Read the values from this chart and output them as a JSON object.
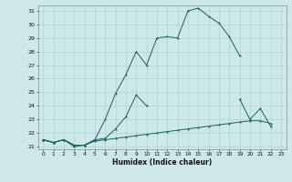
{
  "xlabel": "Humidex (Indice chaleur)",
  "bg_color": "#cce8e8",
  "line_color": "#1a6060",
  "grid_color": "#aacccc",
  "xmin": 0,
  "xmax": 23,
  "ymin": 21,
  "ymax": 31,
  "line1_y": [
    21.5,
    21.3,
    21.5,
    21.0,
    21.1,
    21.5,
    23.0,
    24.9,
    26.3,
    28.0,
    27.0,
    29.0,
    29.1,
    29.0,
    31.0,
    31.2,
    30.6,
    30.1,
    29.1,
    27.7,
    null,
    null,
    null,
    null
  ],
  "line2_y": [
    21.5,
    21.3,
    21.5,
    21.1,
    21.1,
    21.5,
    21.6,
    22.3,
    23.2,
    24.8,
    24.0,
    null,
    null,
    null,
    null,
    null,
    null,
    null,
    null,
    24.5,
    23.0,
    23.8,
    22.5,
    null
  ],
  "line3_y": [
    21.5,
    21.3,
    21.5,
    21.1,
    21.1,
    21.4,
    21.5,
    21.6,
    21.7,
    21.8,
    21.9,
    22.0,
    22.1,
    22.2,
    22.3,
    22.4,
    22.5,
    22.6,
    22.7,
    22.8,
    22.9,
    22.9,
    22.7,
    null
  ]
}
